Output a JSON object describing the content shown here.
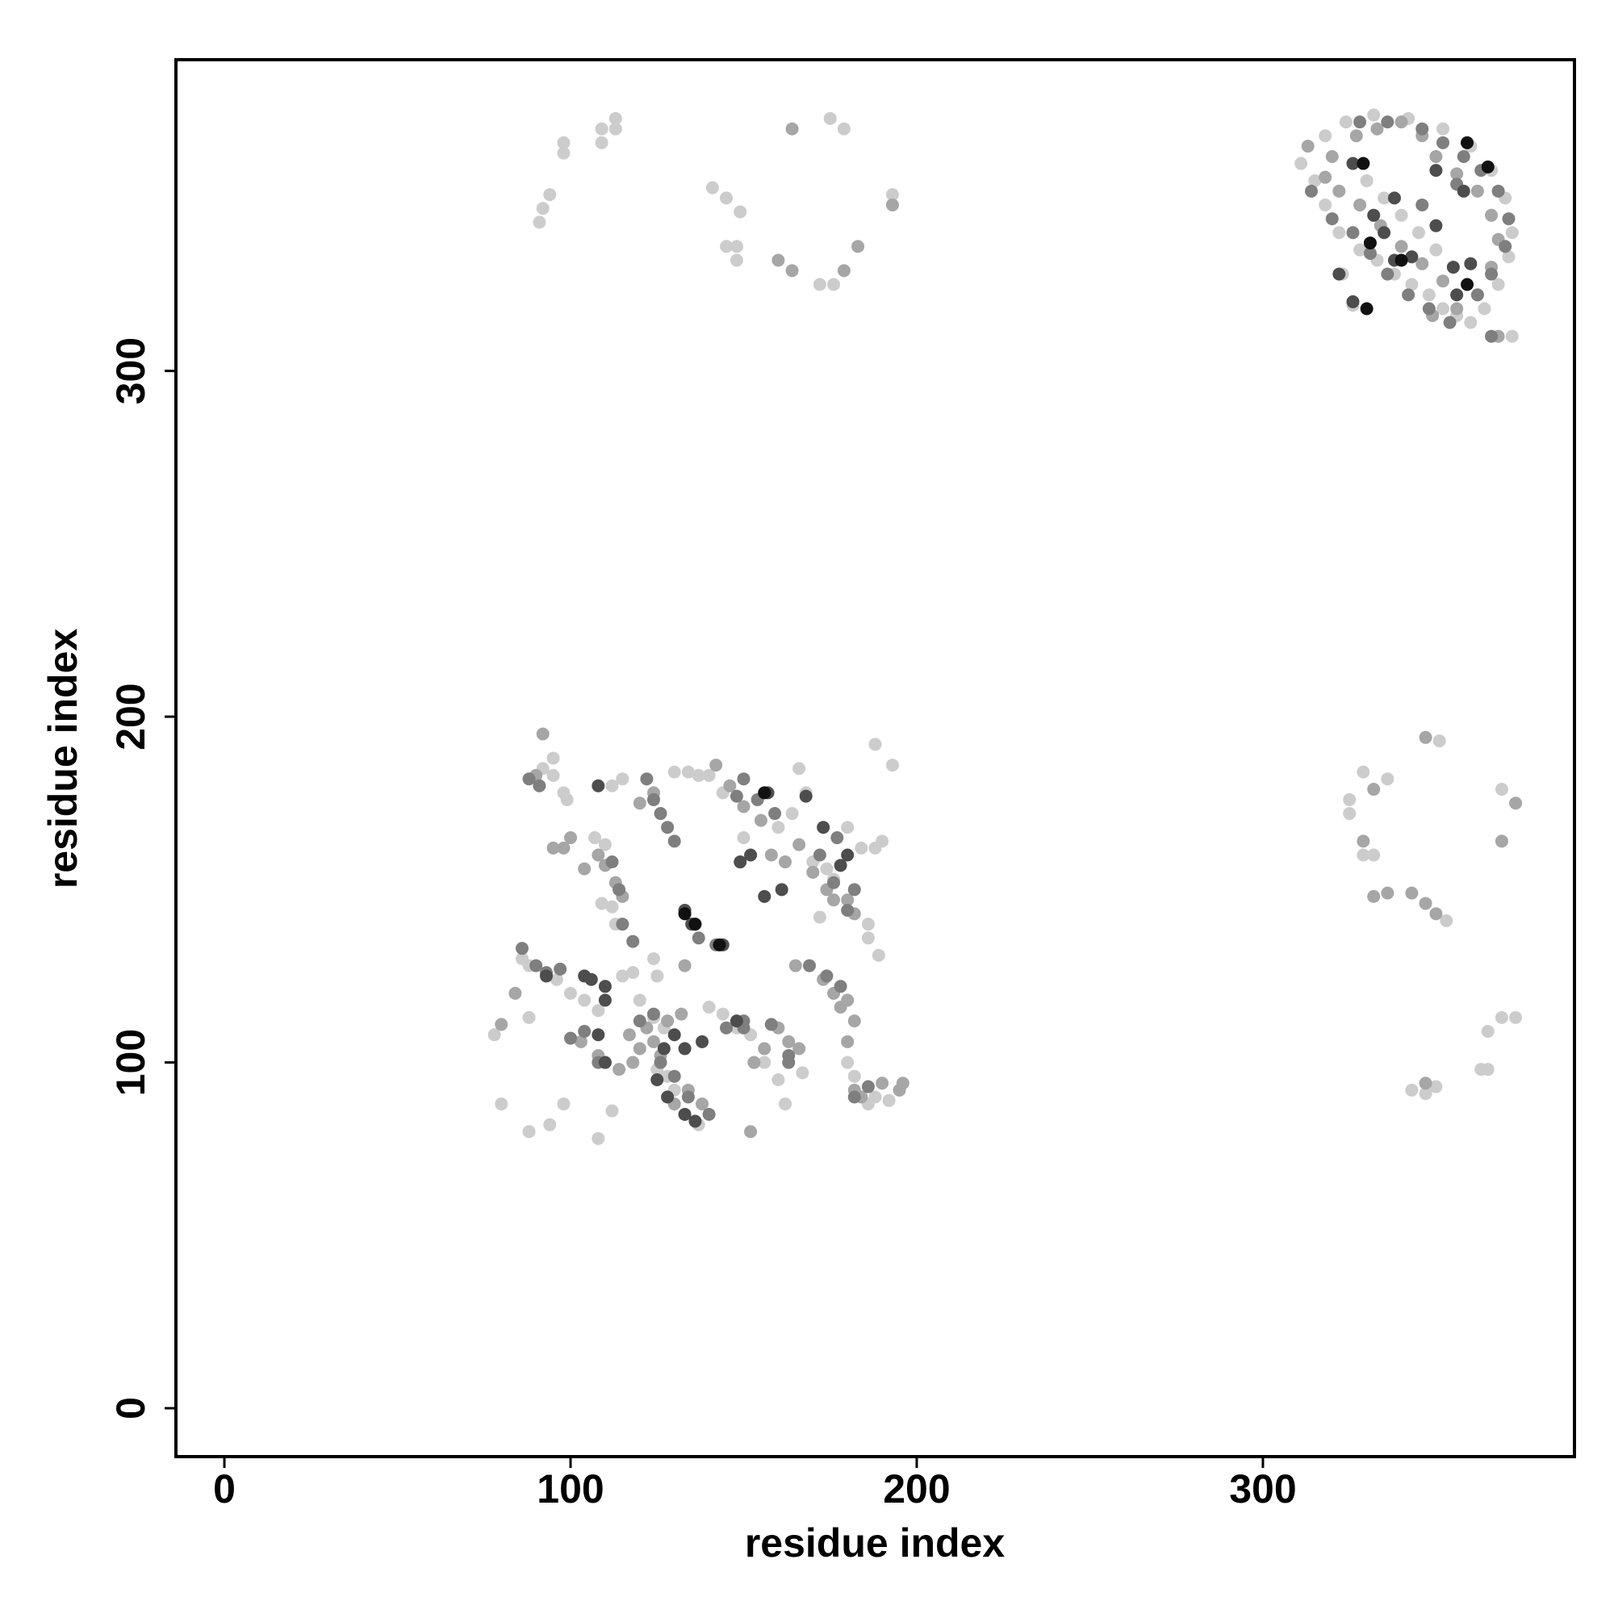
{
  "chart_data": {
    "type": "scatter",
    "xlabel": "residue index",
    "ylabel": "residue index",
    "xlim": [
      -14,
      390
    ],
    "ylim": [
      -14,
      390
    ],
    "xticks": [
      0,
      100,
      200,
      300
    ],
    "yticks": [
      0,
      100,
      200,
      300
    ],
    "series": [
      {
        "color": "#cccccc",
        "x": [
          91,
          92,
          94,
          98,
          98,
          109,
          109,
          113,
          113,
          141,
          145,
          149,
          145,
          148,
          148,
          172,
          176,
          179,
          175,
          193,
          325,
          325,
          329,
          336,
          329,
          332,
          353,
          351,
          369,
          373,
          369,
          365,
          363,
          365,
          343,
          347,
          350,
          311,
          315,
          318,
          322,
          328,
          333,
          338,
          343,
          348,
          352,
          356,
          360,
          364,
          368,
          371,
          372,
          370,
          366,
          360,
          352,
          342,
          332,
          324,
          318,
          323,
          326,
          372,
          330,
          335,
          340,
          345,
          350,
          355,
          78,
          80,
          88,
          88,
          86,
          88,
          92,
          95,
          95,
          98,
          99,
          96,
          100,
          104,
          108,
          107,
          110,
          112,
          115,
          109,
          112,
          113,
          115,
          118,
          120,
          124,
          127,
          125,
          128,
          130,
          133,
          137,
          130,
          134,
          137,
          140,
          144,
          150,
          160,
          164,
          168,
          166,
          170,
          174,
          176,
          172,
          180,
          184,
          188,
          190,
          186,
          186,
          189,
          188,
          186,
          192,
          180,
          182,
          148,
          152,
          156,
          160,
          162,
          167,
          108,
          112,
          94,
          98,
          140,
          144,
          188,
          193,
          125,
          124
        ],
        "y": [
          343,
          347,
          351,
          363,
          366,
          366,
          370,
          373,
          370,
          353,
          350,
          346,
          336,
          332,
          336,
          325,
          325,
          370,
          373,
          351,
          176,
          172,
          184,
          182,
          160,
          160,
          141,
          193,
          179,
          113,
          113,
          109,
          98,
          98,
          92,
          91,
          93,
          360,
          355,
          348,
          340,
          335,
          332,
          328,
          325,
          322,
          318,
          316,
          314,
          318,
          325,
          333,
          340,
          350,
          358,
          365,
          370,
          373,
          374,
          372,
          368,
          328,
          319,
          310,
          355,
          350,
          345,
          340,
          335,
          330,
          108,
          88,
          80,
          113,
          130,
          128,
          185,
          183,
          188,
          178,
          176,
          124,
          120,
          118,
          115,
          165,
          163,
          180,
          182,
          146,
          145,
          140,
          125,
          126,
          118,
          113,
          110,
          98,
          96,
          92,
          85,
          82,
          184,
          184,
          183,
          183,
          178,
          165,
          168,
          172,
          178,
          185,
          158,
          156,
          153,
          142,
          168,
          162,
          162,
          164,
          140,
          136,
          131,
          90,
          88,
          89,
          100,
          96,
          110,
          108,
          100,
          95,
          88,
          97,
          78,
          86,
          82,
          88,
          116,
          114,
          192,
          186,
          125,
          130
        ]
      },
      {
        "color": "#a6a6a6",
        "x": [
          164,
          160,
          164,
          183,
          179,
          193,
          332,
          329,
          336,
          332,
          343,
          347,
          350,
          347,
          369,
          373,
          347,
          313,
          320,
          327,
          333,
          340,
          346,
          350,
          356,
          362,
          366,
          368,
          366,
          362,
          356,
          349,
          352,
          346,
          340,
          334,
          328,
          322,
          318,
          368,
          80,
          84,
          90,
          92,
          95,
          98,
          100,
          104,
          108,
          110,
          113,
          115,
          114,
          118,
          117,
          120,
          122,
          124,
          126,
          128,
          132,
          130,
          134,
          138,
          133,
          142,
          146,
          150,
          155,
          158,
          162,
          166,
          170,
          174,
          176,
          173,
          176,
          178,
          180,
          182,
          180,
          182,
          184,
          190,
          195,
          196,
          153,
          156,
          160,
          163,
          166,
          152,
          108,
          103,
          124,
          120,
          165,
          180,
          182
        ],
        "y": [
          370,
          332,
          329,
          336,
          329,
          348,
          179,
          164,
          149,
          148,
          149,
          146,
          143,
          194,
          164,
          175,
          94,
          365,
          362,
          368,
          370,
          372,
          368,
          362,
          357,
          352,
          345,
          338,
          330,
          322,
          318,
          316,
          326,
          331,
          336,
          342,
          348,
          352,
          356,
          310,
          111,
          120,
          183,
          195,
          162,
          162,
          165,
          156,
          160,
          157,
          152,
          148,
          98,
          100,
          108,
          104,
          110,
          106,
          102,
          112,
          114,
          88,
          92,
          88,
          128,
          186,
          180,
          174,
          170,
          160,
          158,
          163,
          155,
          150,
          147,
          124,
          120,
          116,
          118,
          112,
          106,
          92,
          90,
          94,
          92,
          94,
          100,
          104,
          110,
          106,
          104,
          80,
          102,
          106,
          178,
          175,
          128,
          147,
          143
        ]
      },
      {
        "color": "#7f7f7f",
        "x": [
          314,
          320,
          326,
          331,
          336,
          342,
          348,
          354,
          362,
          366,
          370,
          371,
          368,
          363,
          358,
          352,
          346,
          336,
          328,
          366,
          356,
          346,
          88,
          91,
          86,
          90,
          93,
          97,
          100,
          104,
          108,
          122,
          124,
          126,
          128,
          130,
          112,
          114,
          115,
          118,
          120,
          124,
          126,
          130,
          134,
          140,
          137,
          142,
          145,
          150,
          158,
          163,
          150,
          148,
          154,
          159,
          172,
          176,
          177,
          180,
          182,
          174,
          178,
          182,
          186,
          169,
          150,
          163
        ],
        "y": [
          352,
          344,
          340,
          334,
          328,
          322,
          318,
          314,
          322,
          328,
          336,
          344,
          352,
          358,
          362,
          366,
          370,
          372,
          372,
          310,
          354,
          348,
          182,
          180,
          133,
          128,
          126,
          127,
          107,
          109,
          100,
          182,
          176,
          172,
          168,
          164,
          158,
          150,
          140,
          135,
          112,
          114,
          100,
          96,
          90,
          85,
          136,
          134,
          110,
          112,
          111,
          102,
          182,
          177,
          176,
          172,
          160,
          152,
          165,
          144,
          150,
          125,
          122,
          90,
          93,
          128,
          110,
          100
        ]
      },
      {
        "color": "#4d4d4d",
        "x": [
          326,
          332,
          338,
          343,
          338,
          356,
          360,
          358,
          350,
          322,
          326,
          350,
          355,
          335,
          93,
          104,
          106,
          108,
          110,
          110,
          110,
          125,
          128,
          133,
          136,
          133,
          135,
          144,
          149,
          152,
          156,
          161,
          157,
          168,
          173,
          178,
          180,
          130,
          133,
          127,
          138,
          108,
          148
        ],
        "y": [
          360,
          345,
          350,
          333,
          332,
          322,
          331,
          352,
          342,
          328,
          320,
          358,
          330,
          340,
          125,
          125,
          124,
          108,
          100,
          118,
          122,
          95,
          90,
          85,
          83,
          144,
          140,
          134,
          158,
          160,
          148,
          150,
          178,
          177,
          168,
          157,
          160,
          108,
          104,
          104,
          106,
          180,
          112
        ]
      },
      {
        "color": "#111111",
        "x": [
          359,
          365,
          329,
          331,
          340,
          359,
          330,
          143,
          133,
          136,
          156
        ],
        "y": [
          366,
          359,
          360,
          337,
          332,
          325,
          318,
          134,
          143,
          140,
          178
        ]
      }
    ]
  }
}
